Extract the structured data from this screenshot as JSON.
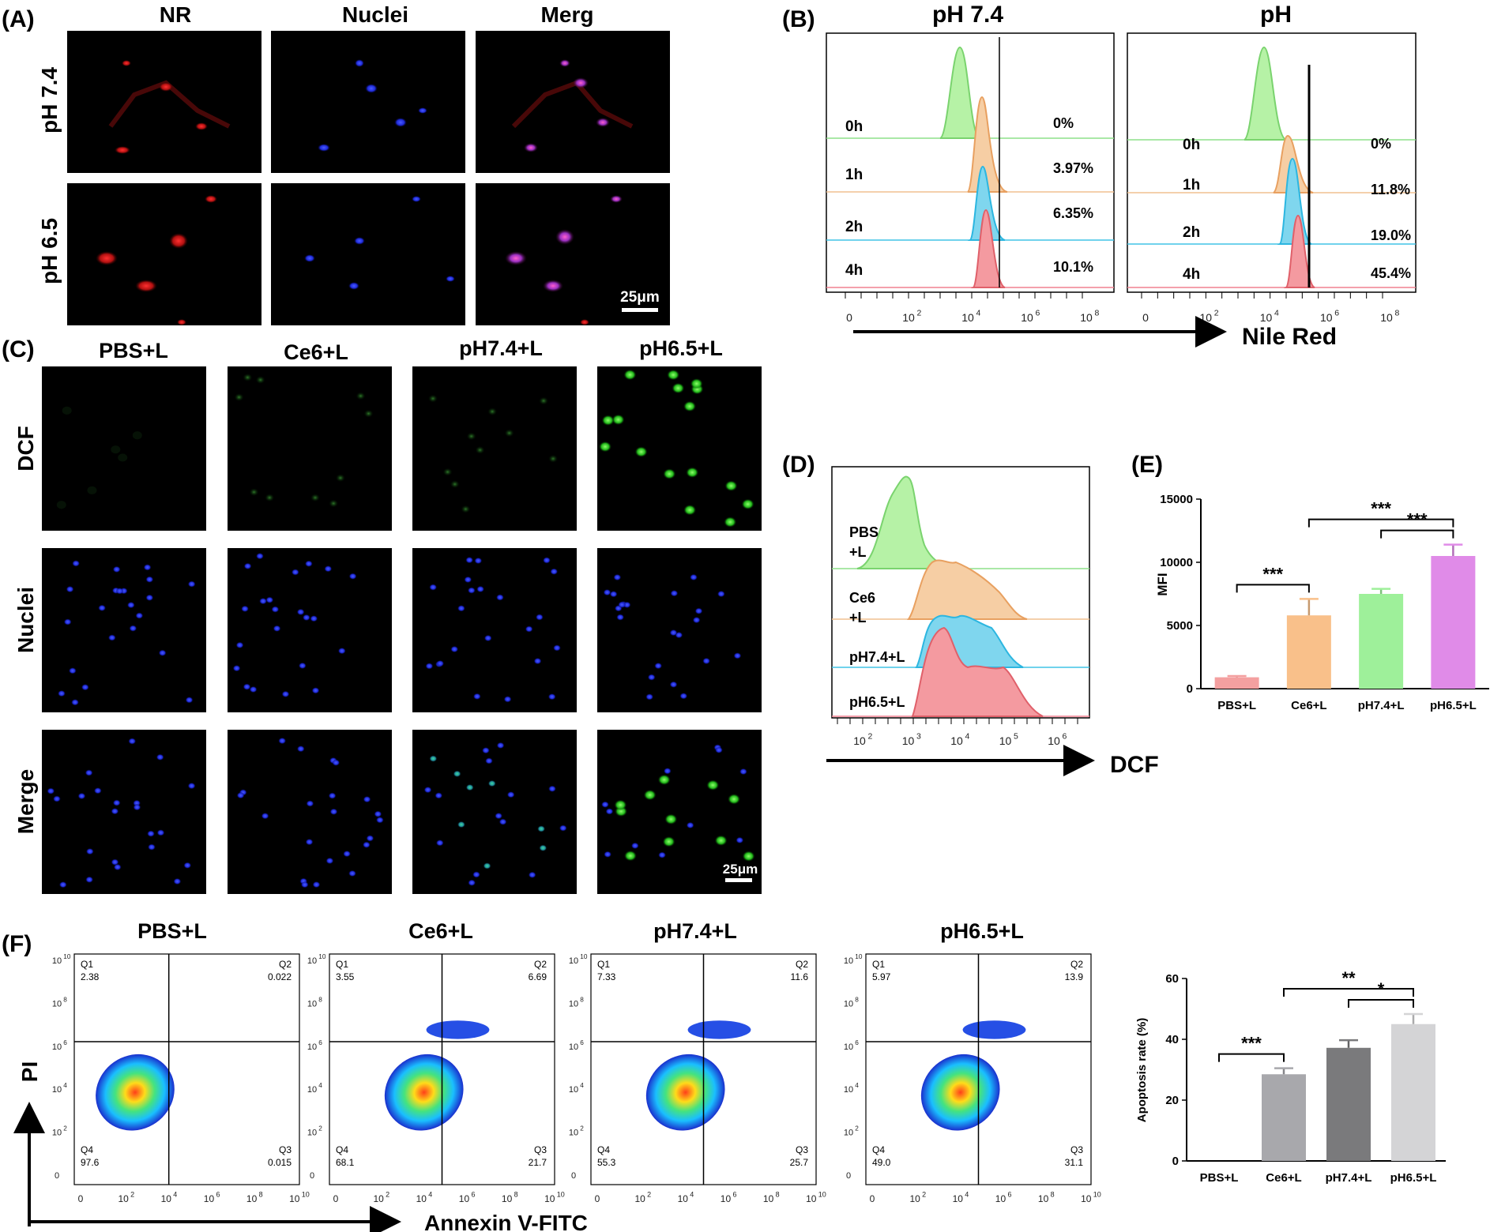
{
  "panels": {
    "A": {
      "letter": "(A)",
      "columns": [
        "NR",
        "Nuclei",
        "Merg"
      ],
      "rows": [
        "pH 7.4",
        "pH 6.5"
      ],
      "scale_bar": "25μm"
    },
    "B": {
      "letter": "(B)",
      "titles": [
        "pH 7.4",
        "pH"
      ],
      "time_labels": [
        "0h",
        "1h",
        "2h",
        "4h"
      ],
      "percents_left": [
        "0%",
        "3.97%",
        "6.35%",
        "10.1%"
      ],
      "percents_right": [
        "0%",
        "11.8%",
        "19.0%",
        "45.4%"
      ],
      "axis_ticks": [
        "0",
        "10",
        "10",
        "10",
        "10"
      ],
      "axis_exps": [
        "",
        "2",
        "4",
        "6",
        "8"
      ],
      "xlabel": "Nile Red"
    },
    "C": {
      "letter": "(C)",
      "columns": [
        "PBS+L",
        "Ce6+L",
        "pH7.4+L",
        "pH6.5+L"
      ],
      "rows": [
        "DCF",
        "Nuclei",
        "Merge"
      ],
      "scale_bar": "25μm"
    },
    "D": {
      "letter": "(D)",
      "labels": [
        [
          "PBS",
          "+L"
        ],
        [
          "Ce6",
          "+L"
        ],
        [
          "pH7.4+L"
        ],
        [
          "pH6.5+L"
        ]
      ],
      "axis_ticks": [
        "10",
        "10",
        "10",
        "10",
        "10"
      ],
      "axis_exps": [
        "2",
        "3",
        "4",
        "5",
        "6"
      ],
      "xlabel": "DCF"
    },
    "E": {
      "letter": "(E)",
      "ylabel": "MFI",
      "sig": [
        "***",
        "***",
        "***"
      ]
    },
    "F": {
      "letter": "(F)",
      "titles": [
        "PBS+L",
        "Ce6+L",
        "pH7.4+L",
        "pH6.5+L"
      ],
      "quadrants": [
        {
          "q1": "2.38",
          "q2": "0.022",
          "q3": "0.015",
          "q4": "97.6"
        },
        {
          "q1": "3.55",
          "q2": "6.69",
          "q3": "21.7",
          "q4": "68.1"
        },
        {
          "q1": "7.33",
          "q2": "11.6",
          "q3": "25.7",
          "q4": "55.3"
        },
        {
          "q1": "5.97",
          "q2": "13.9",
          "q3": "31.1",
          "q4": "49.0"
        }
      ],
      "quad_names": [
        "Q1",
        "Q2",
        "Q3",
        "Q4"
      ],
      "axis_ticks": [
        "0",
        "10",
        "10",
        "10",
        "10",
        "10"
      ],
      "axis_exps": [
        "",
        "2",
        "4",
        "6",
        "8",
        "10"
      ],
      "ylabel": "PI",
      "xlabel": "Annexin V-FITC",
      "sig": [
        "***",
        "*",
        "**"
      ]
    }
  },
  "chart_data": [
    {
      "type": "bar",
      "title": "(E)",
      "categories": [
        "PBS+L",
        "Ce6+L",
        "pH7.4+L",
        "pH6.5+L"
      ],
      "values": [
        900,
        5800,
        7500,
        10500
      ],
      "errors": [
        100,
        1300,
        400,
        900
      ],
      "colors": [
        "#f4a0a0",
        "#f9c08a",
        "#9ef09a",
        "#e08be8"
      ],
      "ylabel": "MFI",
      "xlabel": "",
      "ylim": [
        0,
        15000
      ],
      "yticks": [
        0,
        5000,
        10000,
        15000
      ],
      "significance": [
        {
          "from": 0,
          "to": 1,
          "label": "***"
        },
        {
          "from": 2,
          "to": 3,
          "label": "***"
        },
        {
          "from": 1,
          "to": 3,
          "label": "***"
        }
      ]
    },
    {
      "type": "bar",
      "title": "(F)",
      "categories": [
        "PBS+L",
        "Ce6+L",
        "pH7.4+L",
        "pH6.5+L"
      ],
      "values": [
        0,
        28.5,
        37.2,
        45.0
      ],
      "errors": [
        0,
        2.0,
        2.5,
        3.3
      ],
      "colors": [
        "#ffffff",
        "#a8a8ac",
        "#7a7a7c",
        "#d4d4d6"
      ],
      "ylabel": "Apoptosis rate (%)",
      "xlabel": "",
      "ylim": [
        0,
        60
      ],
      "yticks": [
        0,
        20,
        40,
        60
      ],
      "significance": [
        {
          "from": 0,
          "to": 1,
          "label": "***"
        },
        {
          "from": 2,
          "to": 3,
          "label": "*"
        },
        {
          "from": 1,
          "to": 3,
          "label": "**"
        }
      ]
    }
  ]
}
